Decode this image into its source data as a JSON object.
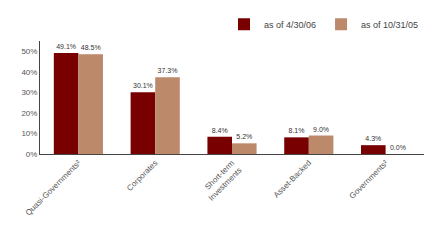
{
  "chart_data": {
    "type": "bar",
    "categories": [
      "Quasi-Governments²",
      "Corporates",
      "Short-term\nInvestments",
      "Asset-Backed",
      "Governments²"
    ],
    "series": [
      {
        "name": "as of 4/30/06",
        "color": "#780000",
        "values": [
          49.1,
          30.1,
          8.4,
          8.1,
          4.3
        ],
        "value_labels": [
          "49.1%",
          "30.1%",
          "8.4%",
          "8.1%",
          "4.3%"
        ]
      },
      {
        "name": "as of 10/31/05",
        "color": "#BC896A",
        "values": [
          48.5,
          37.3,
          5.2,
          9.0,
          0.0
        ],
        "value_labels": [
          "48.5%",
          "37.3%",
          "5.2%",
          "9.0%",
          "0.0%"
        ]
      }
    ],
    "ylim": [
      0,
      55
    ],
    "yticks": [
      {
        "value": 0,
        "label": "0%"
      },
      {
        "value": 10,
        "label": "10%"
      },
      {
        "value": 20,
        "label": "20%"
      },
      {
        "value": 30,
        "label": "30%"
      },
      {
        "value": 40,
        "label": "40%"
      },
      {
        "value": 50,
        "label": "50%"
      }
    ],
    "grid": false,
    "legend": "upper right",
    "data_labels": true
  }
}
